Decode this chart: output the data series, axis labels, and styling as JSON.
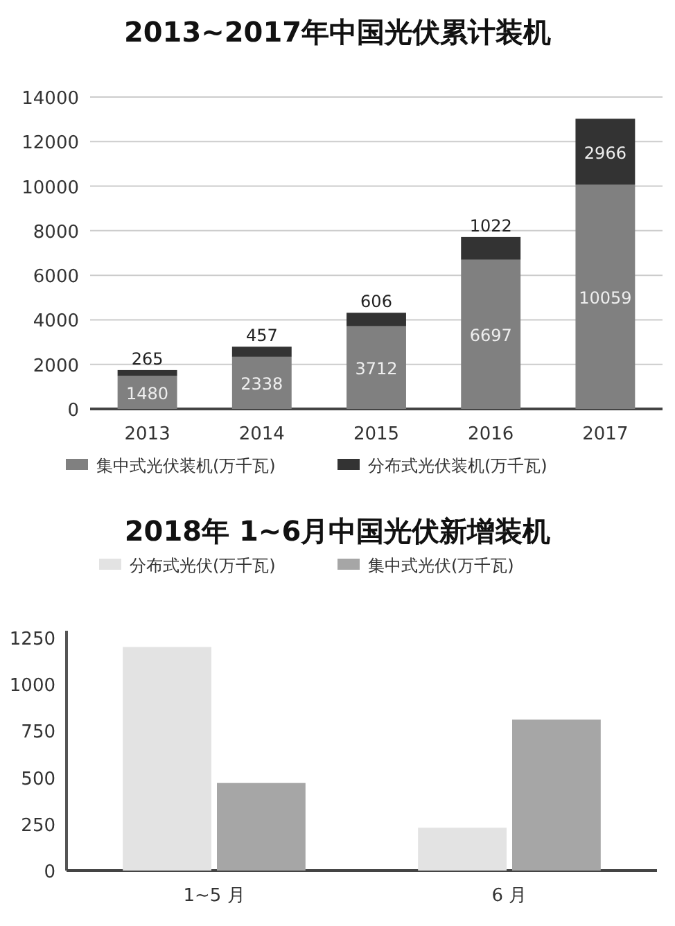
{
  "chart_data": [
    {
      "type": "bar",
      "title": "2013~2017年中国光伏累计装机",
      "stacked": true,
      "categories": [
        "2013",
        "2014",
        "2015",
        "2016",
        "2017"
      ],
      "series": [
        {
          "name": "集中式光伏装机(万千瓦)",
          "color": "#808080",
          "values": [
            1480,
            2338,
            3712,
            6697,
            10059
          ]
        },
        {
          "name": "分布式光伏装机(万千瓦)",
          "color": "#333333",
          "values": [
            265,
            457,
            606,
            1022,
            2966
          ]
        }
      ],
      "ylim": [
        0,
        14000
      ],
      "yticks": [
        0,
        2000,
        4000,
        6000,
        8000,
        10000,
        12000,
        14000
      ],
      "grid": "y",
      "legend": "bottom",
      "data_labels": true
    },
    {
      "type": "bar",
      "title": "2018年 1~6月中国光伏新增装机",
      "categories": [
        "1~5 月",
        "6 月"
      ],
      "series": [
        {
          "name": "分布式光伏(万千瓦)",
          "color": "#e3e3e3",
          "values": [
            1200,
            230
          ]
        },
        {
          "name": "集中式光伏(万千瓦)",
          "color": "#a6a6a6",
          "values": [
            470,
            810
          ]
        }
      ],
      "ylim": [
        0,
        1250
      ],
      "yticks": [
        0,
        250,
        500,
        750,
        1000,
        1250
      ],
      "legend": "top"
    }
  ]
}
